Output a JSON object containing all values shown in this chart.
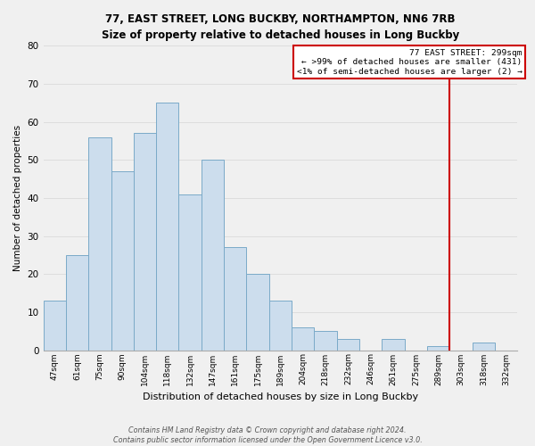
{
  "title": "77, EAST STREET, LONG BUCKBY, NORTHAMPTON, NN6 7RB",
  "subtitle": "Size of property relative to detached houses in Long Buckby",
  "xlabel": "Distribution of detached houses by size in Long Buckby",
  "ylabel": "Number of detached properties",
  "bar_labels": [
    "47sqm",
    "61sqm",
    "75sqm",
    "90sqm",
    "104sqm",
    "118sqm",
    "132sqm",
    "147sqm",
    "161sqm",
    "175sqm",
    "189sqm",
    "204sqm",
    "218sqm",
    "232sqm",
    "246sqm",
    "261sqm",
    "275sqm",
    "289sqm",
    "303sqm",
    "318sqm",
    "332sqm"
  ],
  "bar_values": [
    13,
    25,
    56,
    47,
    57,
    65,
    41,
    50,
    27,
    20,
    13,
    6,
    5,
    3,
    0,
    3,
    0,
    1,
    0,
    2,
    0
  ],
  "bar_color": "#ccdded",
  "bar_edge_color": "#7aaac8",
  "ylim": [
    0,
    80
  ],
  "yticks": [
    0,
    10,
    20,
    30,
    40,
    50,
    60,
    70,
    80
  ],
  "vline_x_index": 18,
  "vline_color": "#cc0000",
  "legend_title": "77 EAST STREET: 299sqm",
  "legend_line1": "← >99% of detached houses are smaller (431)",
  "legend_line2": "<1% of semi-detached houses are larger (2) →",
  "footer1": "Contains HM Land Registry data © Crown copyright and database right 2024.",
  "footer2": "Contains public sector information licensed under the Open Government Licence v3.0.",
  "background_color": "#f0f0f0",
  "plot_background": "#f0f0f0",
  "grid_color": "#dddddd"
}
